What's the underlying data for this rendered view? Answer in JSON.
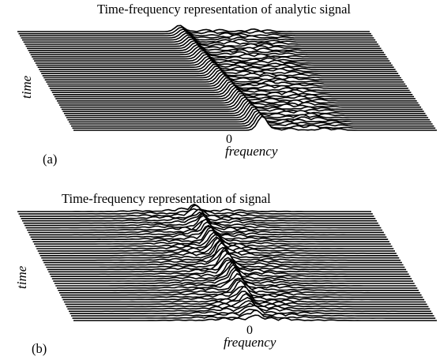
{
  "chart_data": [
    {
      "type": "waterfall",
      "title": "Time-frequency representation of analytic signal",
      "xlabel": "frequency",
      "ylabel": "time",
      "x_tick_labels": [
        "0"
      ],
      "panel_label": "(a)",
      "energy_side": "positive-frequency",
      "traces": 48
    },
    {
      "type": "waterfall",
      "title": "Time-frequency representation of signal",
      "xlabel": "frequency",
      "ylabel": "time",
      "x_tick_labels": [
        "0"
      ],
      "panel_label": "(b)",
      "energy_side": "symmetric",
      "traces": 48
    }
  ]
}
